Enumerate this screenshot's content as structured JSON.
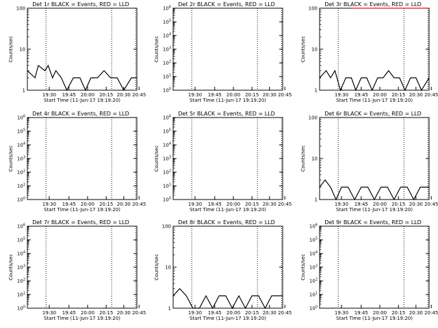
{
  "chart_data": [
    {
      "type": "line",
      "title": "Det 1r BLACK = Events, RED = LLD",
      "xlabel": "Start Time (11-Jun-17 19:19:20)",
      "ylabel": "Counts/sec",
      "yscale": "log",
      "ylim": [
        1,
        100
      ],
      "yticks": [
        {
          "b": "1"
        },
        {
          "b": "10"
        },
        {
          "b": "100"
        }
      ],
      "xticks": [
        "19:30",
        "19:45",
        "20:00",
        "20:15",
        "20:30",
        "20:45"
      ],
      "series": [
        {
          "color": "#000000",
          "x": [
            0.0,
            0.07,
            0.1,
            0.16,
            0.19,
            0.23,
            0.26,
            0.31,
            0.36,
            0.42,
            0.48,
            0.53,
            0.58,
            0.64,
            0.7,
            0.76,
            0.82,
            0.88,
            0.95,
            1.0
          ],
          "y": [
            3,
            2,
            4,
            3,
            4,
            2,
            3,
            2,
            1,
            2,
            2,
            1,
            2,
            2,
            3,
            2,
            2,
            1,
            2,
            2
          ]
        },
        {
          "color": "#ff0000",
          "x": [],
          "y": []
        }
      ]
    },
    {
      "type": "line",
      "title": "Det 2r BLACK = Events, RED = LLD",
      "xlabel": "Start Time (11-Jun-17 19:19:20)",
      "ylabel": "Counts/sec",
      "yscale": "log",
      "ylim": [
        1,
        1000000
      ],
      "yticks": [
        {
          "b": "10",
          "e": "0"
        },
        {
          "b": "10",
          "e": "1"
        },
        {
          "b": "10",
          "e": "2"
        },
        {
          "b": "10",
          "e": "3"
        },
        {
          "b": "10",
          "e": "4"
        },
        {
          "b": "10",
          "e": "5"
        },
        {
          "b": "10",
          "e": "6"
        }
      ],
      "xticks": [
        "19:30",
        "19:45",
        "20:00",
        "20:15",
        "20:30",
        "20:45"
      ],
      "series": [
        {
          "color": "#000000",
          "x": [],
          "y": []
        },
        {
          "color": "#ff0000",
          "x": [],
          "y": []
        }
      ]
    },
    {
      "type": "line",
      "title": "Det 3r BLACK = Events, RED = LLD",
      "xlabel": "Start Time (11-Jun-17 19:19:20)",
      "ylabel": "Counts/sec",
      "yscale": "log",
      "ylim": [
        1,
        100
      ],
      "yticks": [
        {
          "b": "1"
        },
        {
          "b": "10"
        },
        {
          "b": "100"
        }
      ],
      "xticks": [
        "19:30",
        "19:45",
        "20:00",
        "20:15",
        "20:30",
        "20:45"
      ],
      "series": [
        {
          "color": "#000000",
          "x": [
            0.0,
            0.06,
            0.1,
            0.14,
            0.19,
            0.24,
            0.29,
            0.33,
            0.38,
            0.43,
            0.48,
            0.53,
            0.58,
            0.63,
            0.68,
            0.73,
            0.78,
            0.83,
            0.88,
            0.93,
            1.0
          ],
          "y": [
            2,
            3,
            2,
            3,
            1,
            2,
            2,
            1,
            2,
            2,
            1,
            2,
            2,
            3,
            2,
            2,
            1,
            2,
            2,
            1,
            2
          ]
        },
        {
          "color": "#ff0000",
          "x": [
            0.3,
            0.4,
            0.85,
            0.93,
            1.0
          ],
          "y": [
            100,
            100,
            100,
            100,
            100
          ]
        }
      ]
    },
    {
      "type": "line",
      "title": "Det 4r BLACK = Events, RED = LLD",
      "xlabel": "Start Time (11-Jun-17 19:19:20)",
      "ylabel": "Counts/sec",
      "yscale": "log",
      "ylim": [
        1,
        1000000
      ],
      "yticks": [
        {
          "b": "10",
          "e": "0"
        },
        {
          "b": "10",
          "e": "1"
        },
        {
          "b": "10",
          "e": "2"
        },
        {
          "b": "10",
          "e": "3"
        },
        {
          "b": "10",
          "e": "4"
        },
        {
          "b": "10",
          "e": "5"
        },
        {
          "b": "10",
          "e": "6"
        }
      ],
      "xticks": [
        "19:30",
        "19:45",
        "20:00",
        "20:15",
        "20:30",
        "20:45"
      ],
      "series": [
        {
          "color": "#000000",
          "x": [],
          "y": []
        },
        {
          "color": "#ff0000",
          "x": [],
          "y": []
        }
      ]
    },
    {
      "type": "line",
      "title": "Det 5r BLACK = Events, RED = LLD",
      "xlabel": "Start Time (11-Jun-17 19:19:20)",
      "ylabel": "Counts/sec",
      "yscale": "log",
      "ylim": [
        1,
        1000000
      ],
      "yticks": [
        {
          "b": "10",
          "e": "0"
        },
        {
          "b": "10",
          "e": "1"
        },
        {
          "b": "10",
          "e": "2"
        },
        {
          "b": "10",
          "e": "3"
        },
        {
          "b": "10",
          "e": "4"
        },
        {
          "b": "10",
          "e": "5"
        },
        {
          "b": "10",
          "e": "6"
        }
      ],
      "xticks": [
        "19:30",
        "19:45",
        "20:00",
        "20:15",
        "20:30",
        "20:45"
      ],
      "series": [
        {
          "color": "#000000",
          "x": [],
          "y": []
        },
        {
          "color": "#ff0000",
          "x": [],
          "y": []
        }
      ]
    },
    {
      "type": "line",
      "title": "Det 6r BLACK = Events, RED = LLD",
      "xlabel": "Start Time (11-Jun-17 19:19:20)",
      "ylabel": "Counts/sec",
      "yscale": "log",
      "ylim": [
        1,
        100
      ],
      "yticks": [
        {
          "b": "1"
        },
        {
          "b": "10"
        },
        {
          "b": "100"
        }
      ],
      "xticks": [
        "19:30",
        "19:45",
        "20:00",
        "20:15",
        "20:30",
        "20:45"
      ],
      "series": [
        {
          "color": "#000000",
          "x": [
            0.0,
            0.05,
            0.1,
            0.15,
            0.2,
            0.26,
            0.32,
            0.38,
            0.44,
            0.5,
            0.56,
            0.62,
            0.68,
            0.74,
            0.8,
            0.86,
            0.92,
            1.0
          ],
          "y": [
            2,
            3,
            2,
            1,
            2,
            2,
            1,
            2,
            2,
            1,
            2,
            2,
            1,
            2,
            2,
            1,
            2,
            2
          ]
        },
        {
          "color": "#ff0000",
          "x": [],
          "y": []
        }
      ]
    },
    {
      "type": "line",
      "title": "Det 7r BLACK = Events, RED = LLD",
      "xlabel": "Start Time (11-Jun-17 19:19:20)",
      "ylabel": "Counts/sec",
      "yscale": "log",
      "ylim": [
        1,
        1000000
      ],
      "yticks": [
        {
          "b": "10",
          "e": "0"
        },
        {
          "b": "10",
          "e": "1"
        },
        {
          "b": "10",
          "e": "2"
        },
        {
          "b": "10",
          "e": "3"
        },
        {
          "b": "10",
          "e": "4"
        },
        {
          "b": "10",
          "e": "5"
        },
        {
          "b": "10",
          "e": "6"
        }
      ],
      "xticks": [
        "19:30",
        "19:45",
        "20:00",
        "20:15",
        "20:30",
        "20:45"
      ],
      "series": [
        {
          "color": "#000000",
          "x": [],
          "y": []
        },
        {
          "color": "#ff0000",
          "x": [],
          "y": []
        }
      ]
    },
    {
      "type": "line",
      "title": "Det 8r BLACK = Events, RED = LLD",
      "xlabel": "Start Time (11-Jun-17 19:19:20)",
      "ylabel": "Counts/sec",
      "yscale": "log",
      "ylim": [
        1,
        100
      ],
      "yticks": [
        {
          "b": "1"
        },
        {
          "b": "10"
        },
        {
          "b": "100"
        }
      ],
      "xticks": [
        "19:30",
        "19:45",
        "20:00",
        "20:15",
        "20:30",
        "20:45"
      ],
      "series": [
        {
          "color": "#000000",
          "x": [
            0.0,
            0.06,
            0.12,
            0.18,
            0.24,
            0.3,
            0.36,
            0.42,
            0.48,
            0.54,
            0.6,
            0.66,
            0.72,
            0.78,
            0.84,
            0.9,
            1.0
          ],
          "y": [
            2,
            3,
            2,
            1,
            1,
            2,
            1,
            2,
            2,
            1,
            2,
            1,
            2,
            2,
            1,
            2,
            2
          ]
        },
        {
          "color": "#ff0000",
          "x": [],
          "y": []
        }
      ]
    },
    {
      "type": "line",
      "title": "Det 9r BLACK = Events, RED = LLD",
      "xlabel": "Start Time (11-Jun-17 19:19:20)",
      "ylabel": "Counts/sec",
      "yscale": "log",
      "ylim": [
        1,
        1000000
      ],
      "yticks": [
        {
          "b": "10",
          "e": "0"
        },
        {
          "b": "10",
          "e": "1"
        },
        {
          "b": "10",
          "e": "2"
        },
        {
          "b": "10",
          "e": "3"
        },
        {
          "b": "10",
          "e": "4"
        },
        {
          "b": "10",
          "e": "5"
        },
        {
          "b": "10",
          "e": "6"
        }
      ],
      "xticks": [
        "19:30",
        "19:45",
        "20:00",
        "20:15",
        "20:30",
        "20:45"
      ],
      "series": [
        {
          "color": "#000000",
          "x": [],
          "y": []
        },
        {
          "color": "#ff0000",
          "x": [],
          "y": []
        }
      ]
    }
  ]
}
